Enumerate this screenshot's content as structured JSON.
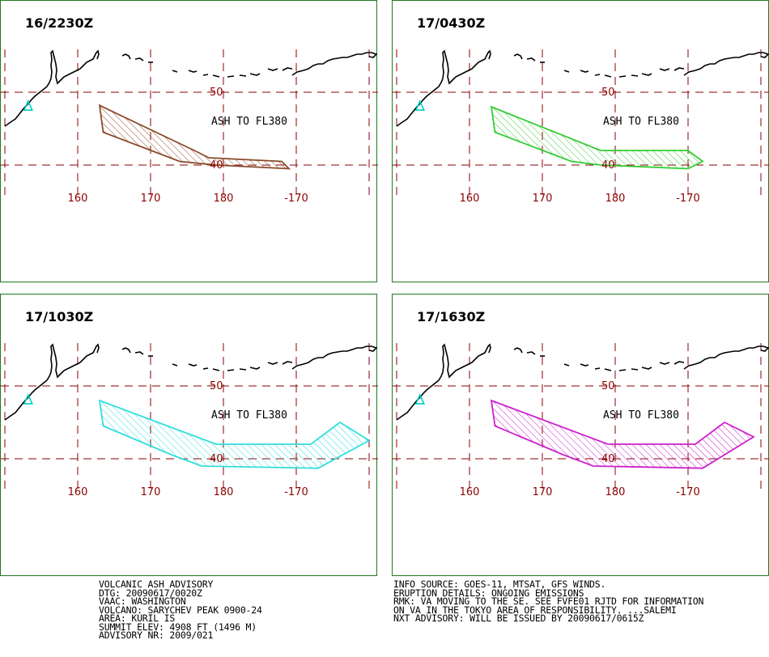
{
  "panels": [
    {
      "time": "16/2230Z",
      "ash_label": "ASH TO FL380",
      "color": "#8b4a2b",
      "plume_lonlat": [
        [
          163,
          48.2
        ],
        [
          176,
          42.0
        ],
        [
          178,
          41.0
        ],
        [
          -172,
          40.5
        ],
        [
          -171,
          39.5
        ],
        [
          179,
          40.0
        ],
        [
          174,
          40.5
        ],
        [
          163.5,
          44.5
        ]
      ]
    },
    {
      "time": "17/0430Z",
      "ash_label": "ASH TO FL380",
      "color": "#33cc33",
      "plume_lonlat": [
        [
          163,
          48.0
        ],
        [
          178,
          42.0
        ],
        [
          -170,
          42.0
        ],
        [
          -168,
          40.5
        ],
        [
          -170,
          39.5
        ],
        [
          178,
          40.0
        ],
        [
          174,
          40.5
        ],
        [
          163.5,
          44.5
        ]
      ]
    },
    {
      "time": "17/1030Z",
      "ash_label": "ASH TO FL380",
      "color": "#33dddd",
      "plume_lonlat": [
        [
          163,
          48.0
        ],
        [
          179,
          42.0
        ],
        [
          -168,
          42.0
        ],
        [
          -164,
          45.0
        ],
        [
          -160,
          42.5
        ],
        [
          -167,
          38.7
        ],
        [
          177,
          39.0
        ],
        [
          173,
          40.5
        ],
        [
          163.5,
          44.5
        ]
      ]
    },
    {
      "time": "17/1630Z",
      "ash_label": "ASH TO FL380",
      "color": "#cc22cc",
      "plume_lonlat": [
        [
          163,
          48.0
        ],
        [
          179,
          42.0
        ],
        [
          -169,
          42.0
        ],
        [
          -165,
          45.0
        ],
        [
          -161,
          43.0
        ],
        [
          -168,
          38.7
        ],
        [
          177,
          39.0
        ],
        [
          173,
          40.5
        ],
        [
          163.5,
          44.5
        ]
      ]
    }
  ],
  "grid": {
    "lat_labels": [
      "50",
      "40"
    ],
    "lon_labels": [
      "160",
      "170",
      "180",
      "-170"
    ],
    "grid_color": "#8b0000"
  },
  "volcano_marker": {
    "lon": 153.2,
    "lat": 48.1,
    "color": "#00cccc"
  },
  "advisory_left": [
    "VOLCANIC ASH ADVISORY",
    "DTG: 20090617/0020Z",
    "VAAC: WASHINGTON",
    "VOLCANO: SARYCHEV PEAK 0900-24",
    "AREA: KURIL IS",
    "SUMMIT ELEV: 4908 FT (1496 M)",
    "ADVISORY NR: 2009/021"
  ],
  "advisory_right": [
    "INFO SOURCE: GOES-11, MTSAT, GFS WINDS.",
    "ERUPTION DETAILS: ONGOING EMISSIONS",
    "RMK: VA MOVING TO THE SE. SEE FVFE01 RJTD FOR INFORMATION",
    "ON VA IN THE TOKYO AREA OF RESPONSIBILITY. ...SALEMI",
    "NXT ADVISORY: WILL BE ISSUED BY 20090617/0615Z"
  ]
}
